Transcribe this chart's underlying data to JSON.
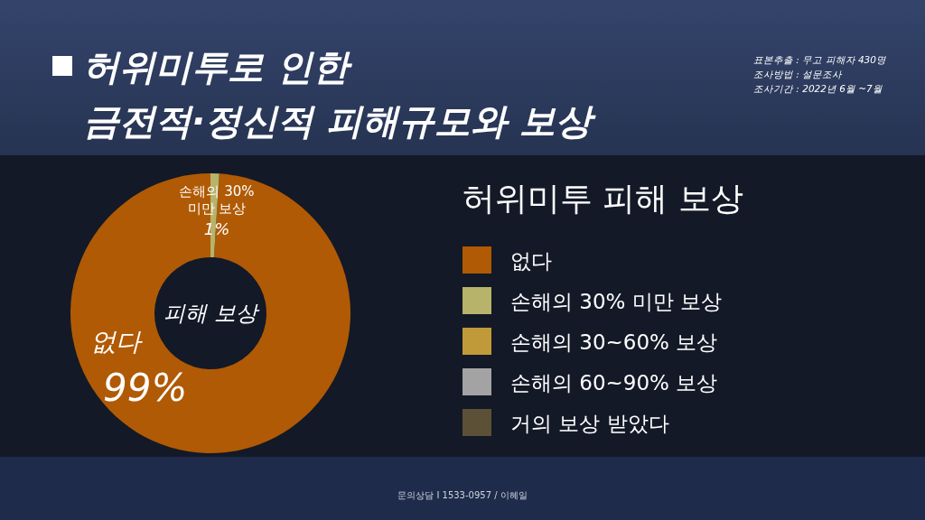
{
  "chart_data": {
    "type": "donut",
    "title": "허위미투로 인한 금전적·정신적 피해규모와 보상",
    "legend_title": "허위미투 피해 보상",
    "categories": [
      "없다",
      "손해의 30% 미만 보상",
      "손해의 30~60% 보상",
      "손해의 60~90% 보상",
      "거의 보상 받았다"
    ],
    "values": [
      99,
      1,
      0,
      0,
      0
    ],
    "colors": [
      "#b05a05",
      "#b8b36a",
      "#c09a38",
      "#a3a3a3",
      "#5c5036"
    ],
    "value_labels": [
      "99%",
      "1%",
      null,
      null,
      null
    ],
    "legend": "right",
    "annotations": [
      {
        "text": "피해 보상"
      },
      "표본추출 : 무고 피해자 430명",
      "조사방법 : 설문조사",
      "조사기간 : 2022년 6월 ~7월",
      "문의상담 I 1533-0957 / 이혜일"
    ]
  }
}
